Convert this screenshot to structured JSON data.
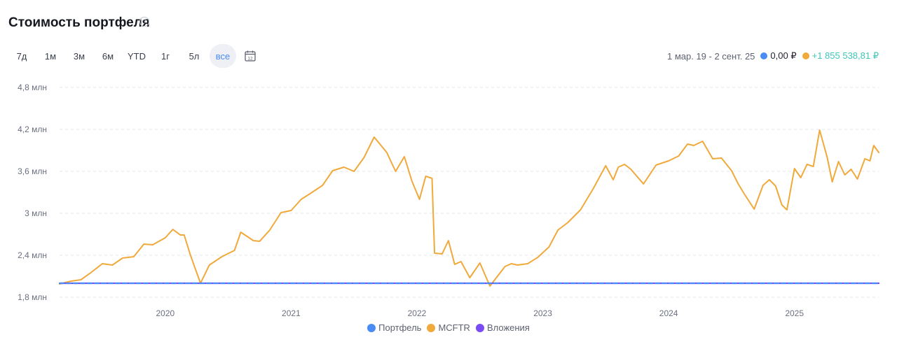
{
  "header": {
    "title": "Стоимость портфеля",
    "help": "?"
  },
  "periods": [
    {
      "label": "7д",
      "active": false
    },
    {
      "label": "1м",
      "active": false
    },
    {
      "label": "3м",
      "active": false
    },
    {
      "label": "6м",
      "active": false
    },
    {
      "label": "YTD",
      "active": false
    },
    {
      "label": "1г",
      "active": false
    },
    {
      "label": "5л",
      "active": false
    },
    {
      "label": "все",
      "active": true
    }
  ],
  "calendar_label": "12",
  "summary": {
    "range": "1 мар. 19 - 2 сент. 25",
    "portfolio_value": "0,00 ₽",
    "mcftr_value": "+1 855 538,81 ₽"
  },
  "colors": {
    "portfolio": "#4a8cf5",
    "mcftr": "#f0a93b",
    "investments": "#7b4cf5",
    "active_period": "#4a8cf5",
    "positive": "#3fc7b7"
  },
  "legend": [
    {
      "name": "Портфель",
      "color": "#4a8cf5"
    },
    {
      "name": "MCFTR",
      "color": "#f0a93b"
    },
    {
      "name": "Вложения",
      "color": "#7b4cf5"
    }
  ],
  "chart_data": {
    "type": "line",
    "grid": true,
    "yticks": [
      {
        "value": 1.8,
        "label": "1,8 млн"
      },
      {
        "value": 2.4,
        "label": "2,4 млн"
      },
      {
        "value": 3.0,
        "label": "3 млн"
      },
      {
        "value": 3.6,
        "label": "3,6 млн"
      },
      {
        "value": 4.2,
        "label": "4,2 млн"
      },
      {
        "value": 4.8,
        "label": "4,8 млн"
      }
    ],
    "xticks": [
      {
        "value": 2020.0,
        "label": "2020"
      },
      {
        "value": 2021.0,
        "label": "2021"
      },
      {
        "value": 2022.0,
        "label": "2022"
      },
      {
        "value": 2023.0,
        "label": "2023"
      },
      {
        "value": 2024.0,
        "label": "2024"
      },
      {
        "value": 2025.0,
        "label": "2025"
      }
    ],
    "xlim": [
      2019.16,
      2025.67
    ],
    "ylim": [
      1.8,
      4.8
    ],
    "series": [
      {
        "name": "MCFTR",
        "color": "#f0a93b",
        "x": [
          2019.16,
          2019.25,
          2019.33,
          2019.4,
          2019.5,
          2019.58,
          2019.66,
          2019.75,
          2019.83,
          2019.9,
          2020.0,
          2020.06,
          2020.12,
          2020.15,
          2020.2,
          2020.28,
          2020.35,
          2020.45,
          2020.55,
          2020.6,
          2020.7,
          2020.75,
          2020.83,
          2020.92,
          2021.0,
          2021.08,
          2021.15,
          2021.25,
          2021.33,
          2021.42,
          2021.5,
          2021.58,
          2021.66,
          2021.71,
          2021.76,
          2021.83,
          2021.9,
          2021.96,
          2022.02,
          2022.07,
          2022.12,
          2022.14,
          2022.2,
          2022.25,
          2022.3,
          2022.35,
          2022.42,
          2022.5,
          2022.58,
          2022.64,
          2022.7,
          2022.75,
          2022.8,
          2022.88,
          2022.96,
          2023.05,
          2023.12,
          2023.2,
          2023.3,
          2023.4,
          2023.5,
          2023.56,
          2023.6,
          2023.65,
          2023.7,
          2023.8,
          2023.9,
          2024.0,
          2024.08,
          2024.15,
          2024.2,
          2024.27,
          2024.35,
          2024.42,
          2024.5,
          2024.55,
          2024.6,
          2024.68,
          2024.75,
          2024.8,
          2024.85,
          2024.9,
          2024.94,
          2025.0,
          2025.05,
          2025.1,
          2025.15,
          2025.2,
          2025.26,
          2025.3,
          2025.35,
          2025.4,
          2025.45,
          2025.5,
          2025.56,
          2025.6,
          2025.63,
          2025.67
        ],
        "y": [
          1.99,
          2.03,
          2.05,
          2.14,
          2.28,
          2.26,
          2.36,
          2.38,
          2.56,
          2.55,
          2.65,
          2.77,
          2.69,
          2.69,
          2.4,
          2.0,
          2.26,
          2.38,
          2.47,
          2.73,
          2.61,
          2.6,
          2.76,
          3.01,
          3.04,
          3.2,
          3.28,
          3.4,
          3.61,
          3.66,
          3.6,
          3.8,
          4.09,
          3.98,
          3.87,
          3.6,
          3.81,
          3.46,
          3.2,
          3.53,
          3.5,
          2.43,
          2.42,
          2.61,
          2.27,
          2.31,
          2.08,
          2.29,
          1.96,
          2.1,
          2.24,
          2.28,
          2.26,
          2.28,
          2.37,
          2.52,
          2.76,
          2.87,
          3.05,
          3.35,
          3.68,
          3.48,
          3.66,
          3.7,
          3.63,
          3.42,
          3.69,
          3.75,
          3.82,
          3.99,
          3.97,
          4.03,
          3.78,
          3.79,
          3.61,
          3.43,
          3.28,
          3.06,
          3.4,
          3.48,
          3.39,
          3.12,
          3.05,
          3.64,
          3.51,
          3.7,
          3.67,
          4.19,
          3.8,
          3.45,
          3.74,
          3.55,
          3.63,
          3.49,
          3.78,
          3.75,
          3.97,
          3.87
        ]
      },
      {
        "name": "Вложения",
        "color": "#7b4cf5",
        "x": [
          2019.16,
          2025.67
        ],
        "y": [
          2.0,
          2.0
        ]
      },
      {
        "name": "Портфель",
        "color": "#4a8cf5",
        "x": [
          2019.16,
          2025.67
        ],
        "y": [
          2.0,
          2.0
        ]
      }
    ]
  }
}
